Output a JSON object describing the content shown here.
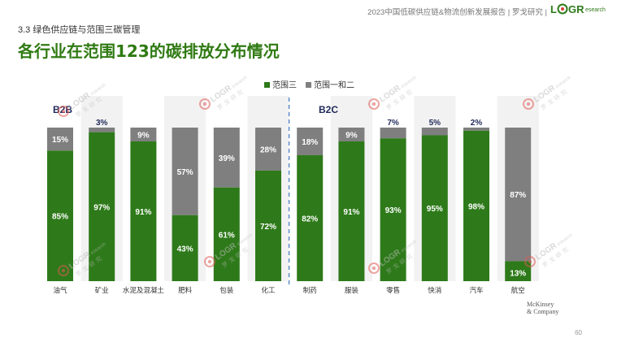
{
  "header": {
    "title": "2023中国低碳供应链&物流创新发展报告 | 罗戈研究 |"
  },
  "section_label": "3.3 绿色供应链与范围三碳管理",
  "chart_data": {
    "type": "bar",
    "stacked": true,
    "title": "各行业在范围123的碳排放分布情况",
    "categories": [
      "油气",
      "矿业",
      "水泥及混凝土",
      "肥料",
      "包装",
      "化工",
      "制药",
      "服装",
      "零售",
      "快消",
      "汽车",
      "航空"
    ],
    "series": [
      {
        "name": "范围三",
        "color": "#2e7a1a",
        "values": [
          85,
          97,
          91,
          43,
          61,
          72,
          82,
          91,
          93,
          95,
          98,
          13
        ]
      },
      {
        "name": "范围一和二",
        "color": "#7f7f7f",
        "values": [
          15,
          3,
          9,
          57,
          39,
          28,
          18,
          9,
          7,
          5,
          2,
          87
        ]
      }
    ],
    "group_labels": [
      "B2B",
      "B2C"
    ],
    "group_split_after": 6,
    "unit": "%",
    "ylim": [
      0,
      100
    ],
    "legend_position": "top-center",
    "grid": false
  },
  "watermark": {
    "text_main": "LOGR",
    "text_sub": "esearch",
    "cn": "罗戈研究"
  },
  "source": {
    "line1": "McKinsey",
    "line2": "& Company"
  },
  "page_number": "60"
}
